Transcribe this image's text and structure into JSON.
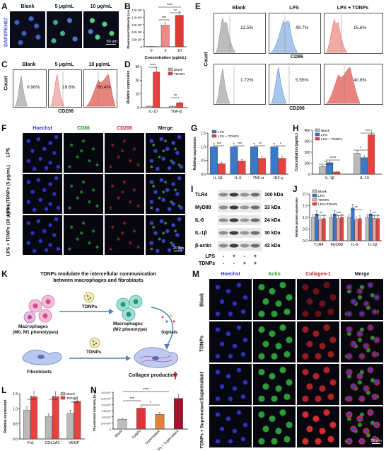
{
  "panels": {
    "A": {
      "label": "A",
      "ylabel": "DAPI/PKH67",
      "cols": [
        "Blank",
        "5 μg/mL",
        "10 μg/mL"
      ],
      "scale": "50 μm"
    },
    "B": {
      "label": "B",
      "ylabel": "Fluorescent Intensity (a.u.)",
      "xlabel": "Concentration (μg/mL)",
      "ticks": [
        "0",
        "5",
        "10"
      ],
      "yticks": [
        "1.5×10⁶",
        "1.2×10⁶",
        "9.0×10⁵",
        "6.0×10⁵",
        "3.0×10⁵",
        "0"
      ],
      "sig": [
        "****",
        "***",
        "**"
      ]
    },
    "C": {
      "label": "C",
      "cols": [
        "Blank",
        "5 μg/mL",
        "10 μg/mL"
      ],
      "pcts": [
        "0.96%",
        "19.6%",
        "60.4%"
      ],
      "xlabel": "CD206",
      "ylabel": "Count"
    },
    "D": {
      "label": "D",
      "ylabel": "Relative expression",
      "legend": [
        "Blank",
        "TDNPs"
      ],
      "cats": [
        "IL-10",
        "TGF-β"
      ],
      "yticks": [
        "30",
        "20",
        "10",
        "0"
      ],
      "sig": [
        "****",
        "**"
      ]
    },
    "E": {
      "label": "E",
      "cols": [
        "Blank",
        "LPS",
        "LPS + TDNPs"
      ],
      "pcts_top": [
        "12.5%",
        "49.7%",
        "15.6%"
      ],
      "pcts_bot": [
        "1.72%",
        "5.55%",
        "40.8%"
      ],
      "xlabel_top": "CD86",
      "xlabel_bot": "CD206",
      "ylabel": "Count"
    },
    "F": {
      "label": "F",
      "cols": [
        "Hoechst",
        "CD86",
        "CD206",
        "Merge"
      ],
      "rows": [
        "LPS",
        "LPS + TDNPs (5 μg/mL)",
        "LPS + TDNPs (10 μg/mL)"
      ],
      "scale": "20 μm"
    },
    "G": {
      "label": "G",
      "ylabel": "Relative expression",
      "legend": [
        "LPS",
        "LPS + TDNPs"
      ],
      "cats": [
        "IL-1β",
        "IL-6",
        "TNF-α",
        "INF-γ"
      ],
      "yticks": [
        "1.5",
        "1.0",
        "0.5",
        "0.0"
      ],
      "sig": [
        "***",
        "***",
        "**",
        "*"
      ]
    },
    "H": {
      "label": "H",
      "ylabel": "Concentration (pg/mL)",
      "legend": [
        "Blank",
        "LPS",
        "LPS + TDNPs"
      ],
      "cats": [
        "IL-1β",
        "IL-10"
      ],
      "yticks": [
        "400",
        "300",
        "200",
        "100",
        "0"
      ],
      "sig": [
        "**",
        "****",
        "*",
        "***"
      ]
    },
    "I": {
      "label": "I",
      "bands": [
        {
          "name": "TLR4",
          "kda": "100 kDa"
        },
        {
          "name": "MyD88",
          "kda": "33 kDa"
        },
        {
          "name": "IL-6",
          "kda": "24 kDa"
        },
        {
          "name": "IL-1β",
          "kda": "30 kDa"
        },
        {
          "name": "β-actin",
          "kda": "42 kDa"
        }
      ],
      "rows": [
        {
          "name": "LPS",
          "vals": [
            "-",
            "+",
            "-",
            "+"
          ]
        },
        {
          "name": "TDNPs",
          "vals": [
            "-",
            "-",
            "+",
            "+"
          ]
        }
      ]
    },
    "J": {
      "label": "J",
      "ylabel": "Relative protein expression",
      "legend": [
        "Blank",
        "LPS",
        "TDNPs",
        "LPS+TDNPs"
      ],
      "cats": [
        "TLR4",
        "MyD88",
        "IL-6",
        "IL-1β"
      ],
      "yticks": [
        "2.0",
        "1.5",
        "1.0",
        "0.5",
        "0.0"
      ]
    },
    "K": {
      "label": "K",
      "title": "TDNPs modulate the intercellular communication",
      "subtitle": "between macrophages and fibroblasts",
      "mac1": "Macrophages",
      "mac1b": "(M0, M1 phenotypes)",
      "mac2": "Macrophages",
      "mac2b": "(M2 phenotype)",
      "tdnps": "TDNPs",
      "signals": "Signals",
      "fibro": "Fibroblasts",
      "collagen": "Collagen production"
    },
    "L": {
      "label": "L",
      "ylabel": "Relative expression",
      "legend": [
        "Blank",
        "TDNPs"
      ],
      "cats": [
        "Fn1",
        "COL1A1",
        "VEGF"
      ],
      "yticks": [
        "1.5",
        "1.0",
        "0.5",
        "0.0"
      ],
      "sig": [
        "*",
        "*",
        "*"
      ]
    },
    "M": {
      "label": "M",
      "cols": [
        "Hoechst",
        "Actin",
        "Collagen-1",
        "Merge"
      ],
      "rows": [
        "Blank",
        "TDNPs",
        "Supernatant",
        "TDNPs + Supernatant"
      ],
      "scale": "50 μm"
    },
    "N": {
      "label": "N",
      "ylabel": "Fluorescent Intensity (a.u.)",
      "cats": [
        "Blank",
        "TDNPs",
        "Supernatant",
        "TDNPs + Supernatant"
      ],
      "yticks": [
        "3.0×10⁷",
        "2.5×10⁷",
        "2.0×10⁷",
        "1.5×10⁷",
        "1.0×10⁷",
        "5.0×10⁶",
        "0"
      ],
      "sig": [
        "****",
        "***",
        "*"
      ]
    }
  },
  "colors": {
    "red": "#e8413e",
    "blue": "#3a78c9",
    "gray": "#b9b9b9",
    "hoechst": "#2d2fd0",
    "green": "#1c9c2c",
    "crimson": "#c0202a",
    "darkred": "#a3122a",
    "orange": "#d9692f"
  },
  "chart_data": [
    {
      "type": "bar",
      "id": "B",
      "categories": [
        "0",
        "5",
        "10"
      ],
      "values": [
        20000,
        880000,
        1280000
      ],
      "xlabel": "Concentration (μg/mL)",
      "ylabel": "Fluorescent Intensity (a.u.)",
      "ylim": [
        0,
        1500000
      ]
    },
    {
      "type": "bar",
      "id": "D",
      "categories": [
        "IL-10",
        "TGF-β"
      ],
      "series": [
        {
          "name": "Blank",
          "values": [
            1,
            1
          ]
        },
        {
          "name": "TDNPs",
          "values": [
            26,
            3.5
          ]
        }
      ],
      "ylabel": "Relative expression",
      "ylim": [
        0,
        30
      ]
    },
    {
      "type": "bar",
      "id": "G",
      "categories": [
        "IL-1β",
        "IL-6",
        "TNF-α",
        "INF-γ"
      ],
      "series": [
        {
          "name": "LPS",
          "values": [
            1,
            1,
            1,
            1
          ]
        },
        {
          "name": "LPS + TDNPs",
          "values": [
            0.38,
            0.48,
            0.58,
            0.58
          ]
        }
      ],
      "ylabel": "Relative expression",
      "ylim": [
        0,
        1.5
      ]
    },
    {
      "type": "bar",
      "id": "H",
      "categories": [
        "IL-1β",
        "IL-10"
      ],
      "series": [
        {
          "name": "Blank",
          "values": [
            70,
            190
          ]
        },
        {
          "name": "LPS",
          "values": [
            105,
            150
          ]
        },
        {
          "name": "LPS + TDNPs",
          "values": [
            20,
            360
          ]
        }
      ],
      "ylabel": "Concentration (pg/mL)",
      "ylim": [
        0,
        400
      ]
    },
    {
      "type": "bar",
      "id": "J",
      "categories": [
        "TLR4",
        "MyD88",
        "IL-6",
        "IL-1β"
      ],
      "series": [
        {
          "name": "Blank",
          "values": [
            1,
            1,
            1,
            1
          ]
        },
        {
          "name": "LPS",
          "values": [
            1.15,
            1.15,
            1.4,
            1.15
          ]
        },
        {
          "name": "TDNPs",
          "values": [
            0.9,
            0.95,
            0.9,
            0.95
          ]
        },
        {
          "name": "LPS+TDNPs",
          "values": [
            0.95,
            1.0,
            0.95,
            0.95
          ]
        }
      ],
      "ylabel": "Relative protein expression",
      "ylim": [
        0,
        2.0
      ]
    },
    {
      "type": "bar",
      "id": "L",
      "categories": [
        "Fn1",
        "COL1A1",
        "VEGF"
      ],
      "series": [
        {
          "name": "Blank",
          "values": [
            0.95,
            0.75,
            0.85
          ]
        },
        {
          "name": "TDNPs",
          "values": [
            1.4,
            1.4,
            1.25
          ]
        }
      ],
      "ylabel": "Relative expression",
      "ylim": [
        0,
        1.5
      ]
    },
    {
      "type": "bar",
      "id": "N",
      "categories": [
        "Blank",
        "TDNPs",
        "Supernatant",
        "TDNPs + Supernatant"
      ],
      "values": [
        8000000,
        17000000,
        12000000,
        25000000
      ],
      "ylabel": "Fluorescent Intensity (a.u.)",
      "ylim": [
        0,
        30000000
      ]
    }
  ]
}
